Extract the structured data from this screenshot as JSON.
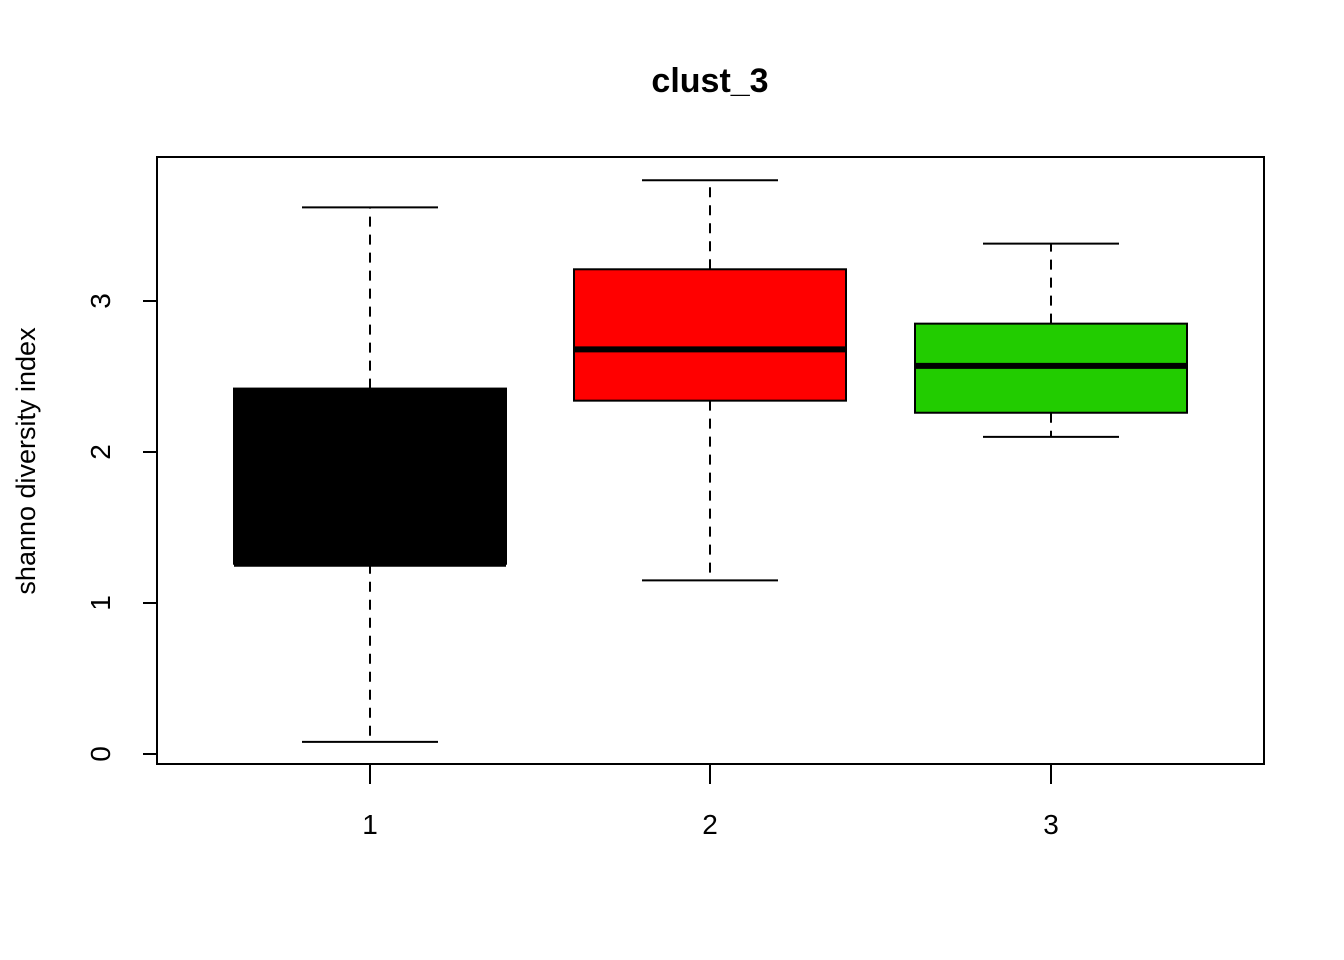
{
  "chart_data": {
    "type": "boxplot",
    "title": "clust_3",
    "xlabel": "",
    "ylabel": "shanno diversity index",
    "categories": [
      "1",
      "2",
      "3"
    ],
    "ylim": [
      0,
      4
    ],
    "yticks": [
      "0",
      "1",
      "2",
      "3"
    ],
    "grid": false,
    "legend": "none",
    "series": [
      {
        "category": "1",
        "color": "#000000",
        "whisker_low": 0.08,
        "q1": 1.26,
        "median": 1.26,
        "q3": 2.42,
        "whisker_high": 3.62
      },
      {
        "category": "2",
        "color": "#ff0000",
        "whisker_low": 1.15,
        "q1": 2.34,
        "median": 2.68,
        "q3": 3.21,
        "whisker_high": 3.8
      },
      {
        "category": "3",
        "color": "#22cc00",
        "whisker_low": 2.1,
        "q1": 2.26,
        "median": 2.57,
        "q3": 2.85,
        "whisker_high": 3.38
      }
    ]
  }
}
